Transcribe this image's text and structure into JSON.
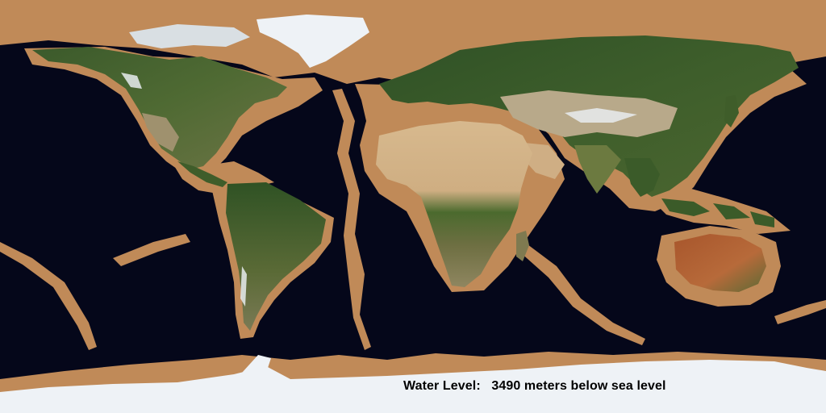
{
  "map": {
    "caption_label": "Water Level:",
    "caption_value": "3490 meters below sea level",
    "colors": {
      "ocean": "#05071a",
      "exposed_seabed": "#c08a58",
      "vegetation": "#3f5d2a",
      "desert": "#cfae84",
      "ice": "#eef2f6"
    }
  }
}
